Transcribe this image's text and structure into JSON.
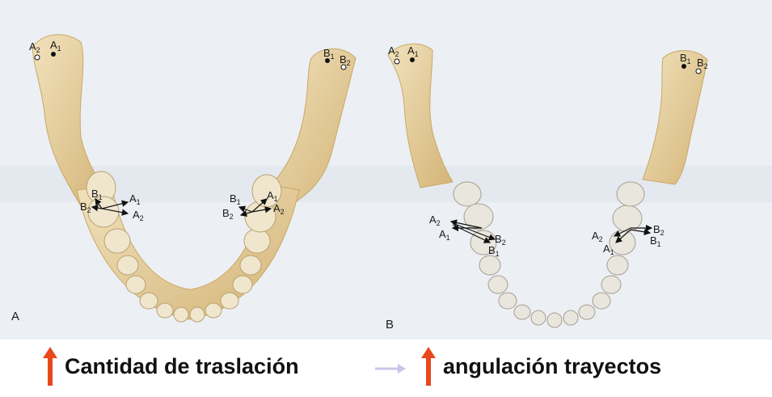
{
  "panel_a": {
    "label": "A",
    "condyle_left": {
      "a2": "A",
      "a2_sub": "2",
      "a1": "A",
      "a1_sub": "1"
    },
    "condyle_right": {
      "b1": "B",
      "b1_sub": "1",
      "b2": "B",
      "b2_sub": "2"
    },
    "molar_left": {
      "b1": "B",
      "b1_sub": "1",
      "b2": "B",
      "b2_sub": "2",
      "a1": "A",
      "a1_sub": "1",
      "a2": "A",
      "a2_sub": "2"
    },
    "molar_right": {
      "b1": "B",
      "b1_sub": "1",
      "b2": "B",
      "b2_sub": "2",
      "a1": "A",
      "a1_sub": "1",
      "a2": "A",
      "a2_sub": "2"
    }
  },
  "panel_b": {
    "label": "B",
    "condyle_left": {
      "a2": "A",
      "a2_sub": "2",
      "a1": "A",
      "a1_sub": "1"
    },
    "condyle_right": {
      "b1": "B",
      "b1_sub": "1",
      "b2": "B",
      "b2_sub": "2"
    },
    "molar_left": {
      "a2": "A",
      "a2_sub": "2",
      "a1": "A",
      "a1_sub": "1",
      "b2": "B",
      "b2_sub": "2",
      "b1": "B",
      "b1_sub": "1"
    },
    "molar_right": {
      "a2": "A",
      "a2_sub": "2",
      "a1": "A",
      "a1_sub": "1",
      "b2": "B",
      "b2_sub": "2",
      "b1": "B",
      "b1_sub": "1"
    }
  },
  "captions": {
    "left": "Cantidad de traslación",
    "right": "angulación trayectos"
  },
  "colors": {
    "up_arrow": "#e8481c",
    "mid_arrow": "#c9c4ea",
    "bone": "#dcc48e",
    "tooth": "#eee6d2"
  }
}
